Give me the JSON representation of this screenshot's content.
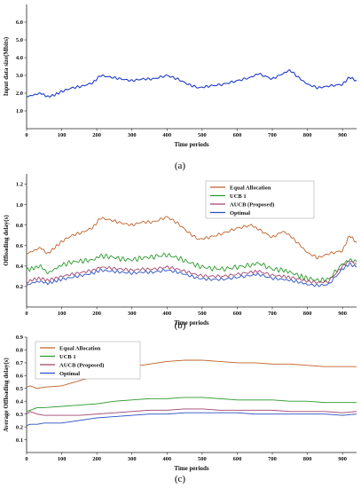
{
  "chart_data": [
    {
      "id": "a",
      "type": "line",
      "caption": "(a)",
      "xlabel": "Time periods",
      "ylabel": "Input data size(Mbits)",
      "xlim": [
        0,
        940
      ],
      "ylim": [
        0,
        7
      ],
      "xticks": [
        0,
        100,
        200,
        300,
        400,
        500,
        600,
        700,
        800,
        900
      ],
      "yticks": [
        "1.0",
        "2.0",
        "3.0",
        "4.0",
        "5.0",
        "6.0"
      ],
      "grid": false,
      "legend": "none",
      "series": [
        {
          "color": "#1f3cc8",
          "x": [
            0,
            20,
            40,
            60,
            80,
            100,
            130,
            160,
            190,
            210,
            240,
            270,
            300,
            330,
            360,
            400,
            430,
            460,
            490,
            520,
            560,
            600,
            640,
            660,
            700,
            730,
            750,
            780,
            800,
            830,
            860,
            900,
            920,
            940
          ],
          "y": [
            1.8,
            1.9,
            2.0,
            1.8,
            1.9,
            2.1,
            2.3,
            2.4,
            2.6,
            3.0,
            2.9,
            2.8,
            2.7,
            2.8,
            2.8,
            3.0,
            2.8,
            2.5,
            2.3,
            2.4,
            2.5,
            2.7,
            2.9,
            3.1,
            2.8,
            3.1,
            3.3,
            2.8,
            2.5,
            2.3,
            2.4,
            2.5,
            2.9,
            2.7
          ]
        }
      ]
    },
    {
      "id": "b",
      "type": "line",
      "caption": "(b)",
      "xlabel": "Time periods",
      "ylabel": "Offloading delay(s)",
      "xlim": [
        0,
        940
      ],
      "ylim": [
        0,
        1.3
      ],
      "xticks": [
        0,
        100,
        200,
        300,
        400,
        500,
        600,
        700,
        800,
        900
      ],
      "yticks": [
        "0.2",
        "0.4",
        "0.6",
        "0.8",
        "1.0",
        "1.2"
      ],
      "grid": false,
      "legend": "top-right",
      "x": [
        0,
        20,
        40,
        60,
        80,
        100,
        130,
        160,
        190,
        210,
        240,
        270,
        300,
        330,
        360,
        400,
        430,
        460,
        490,
        520,
        560,
        600,
        640,
        660,
        700,
        730,
        750,
        780,
        800,
        830,
        860,
        900,
        920,
        940
      ],
      "series": [
        {
          "name": "Equal Allocation",
          "color": "#c0612b",
          "y": [
            0.52,
            0.55,
            0.58,
            0.52,
            0.58,
            0.64,
            0.7,
            0.73,
            0.78,
            0.87,
            0.85,
            0.82,
            0.8,
            0.83,
            0.83,
            0.88,
            0.82,
            0.73,
            0.66,
            0.68,
            0.72,
            0.77,
            0.8,
            0.76,
            0.68,
            0.74,
            0.7,
            0.6,
            0.53,
            0.48,
            0.52,
            0.55,
            0.7,
            0.63
          ]
        },
        {
          "name": "UCB 1",
          "color": "#2a9a2a",
          "y": [
            0.36,
            0.38,
            0.4,
            0.33,
            0.37,
            0.41,
            0.44,
            0.45,
            0.46,
            0.5,
            0.49,
            0.47,
            0.46,
            0.48,
            0.49,
            0.51,
            0.48,
            0.44,
            0.4,
            0.38,
            0.37,
            0.39,
            0.41,
            0.43,
            0.37,
            0.36,
            0.34,
            0.3,
            0.28,
            0.26,
            0.27,
            0.42,
            0.46,
            0.44
          ]
        },
        {
          "name": "AUCB  (Proposed)",
          "color": "#a0436e",
          "y": [
            0.24,
            0.27,
            0.28,
            0.26,
            0.28,
            0.3,
            0.32,
            0.34,
            0.36,
            0.39,
            0.38,
            0.37,
            0.36,
            0.37,
            0.37,
            0.39,
            0.37,
            0.34,
            0.31,
            0.3,
            0.3,
            0.32,
            0.34,
            0.35,
            0.31,
            0.3,
            0.29,
            0.27,
            0.25,
            0.24,
            0.25,
            0.4,
            0.45,
            0.42
          ]
        },
        {
          "name": "Optimal",
          "color": "#2a4fc4",
          "y": [
            0.21,
            0.24,
            0.25,
            0.23,
            0.25,
            0.27,
            0.29,
            0.31,
            0.33,
            0.36,
            0.35,
            0.34,
            0.33,
            0.34,
            0.34,
            0.36,
            0.34,
            0.31,
            0.28,
            0.27,
            0.27,
            0.29,
            0.31,
            0.32,
            0.28,
            0.27,
            0.26,
            0.24,
            0.22,
            0.21,
            0.22,
            0.37,
            0.42,
            0.39
          ]
        }
      ]
    },
    {
      "id": "c",
      "type": "line",
      "caption": "(c)",
      "xlabel": "Time periods",
      "ylabel": "Average Offloading delay(s)",
      "xlim": [
        0,
        940
      ],
      "ylim": [
        0,
        0.9
      ],
      "xticks": [
        0,
        100,
        200,
        300,
        400,
        500,
        600,
        700,
        800,
        900
      ],
      "yticks": [
        "0.1",
        "0.2",
        "0.3",
        "0.4",
        "0.5",
        "0.6",
        "0.7",
        "0.8",
        "0.9"
      ],
      "grid": false,
      "legend": "top-left",
      "x": [
        0,
        10,
        30,
        50,
        100,
        150,
        200,
        250,
        300,
        350,
        400,
        450,
        500,
        550,
        600,
        650,
        700,
        750,
        800,
        850,
        900,
        940
      ],
      "series": [
        {
          "name": "Equal Allocation",
          "color": "#c0612b",
          "y": [
            0.51,
            0.52,
            0.5,
            0.51,
            0.52,
            0.56,
            0.6,
            0.64,
            0.67,
            0.69,
            0.71,
            0.72,
            0.72,
            0.71,
            0.7,
            0.7,
            0.69,
            0.69,
            0.68,
            0.67,
            0.67,
            0.67
          ]
        },
        {
          "name": "UCB 1",
          "color": "#2a9a2a",
          "y": [
            0.32,
            0.33,
            0.35,
            0.35,
            0.36,
            0.37,
            0.38,
            0.4,
            0.41,
            0.42,
            0.42,
            0.43,
            0.43,
            0.42,
            0.41,
            0.41,
            0.41,
            0.4,
            0.4,
            0.39,
            0.39,
            0.39
          ]
        },
        {
          "name": "AUCB  (Proposed)",
          "color": "#a0436e",
          "y": [
            0.3,
            0.32,
            0.3,
            0.29,
            0.29,
            0.29,
            0.3,
            0.31,
            0.32,
            0.33,
            0.33,
            0.34,
            0.34,
            0.33,
            0.33,
            0.33,
            0.33,
            0.32,
            0.32,
            0.32,
            0.31,
            0.32
          ]
        },
        {
          "name": "Optimal",
          "color": "#2a4fc4",
          "y": [
            0.21,
            0.22,
            0.22,
            0.23,
            0.23,
            0.25,
            0.27,
            0.28,
            0.29,
            0.3,
            0.3,
            0.31,
            0.31,
            0.31,
            0.31,
            0.3,
            0.3,
            0.3,
            0.3,
            0.3,
            0.29,
            0.3
          ]
        }
      ]
    }
  ]
}
